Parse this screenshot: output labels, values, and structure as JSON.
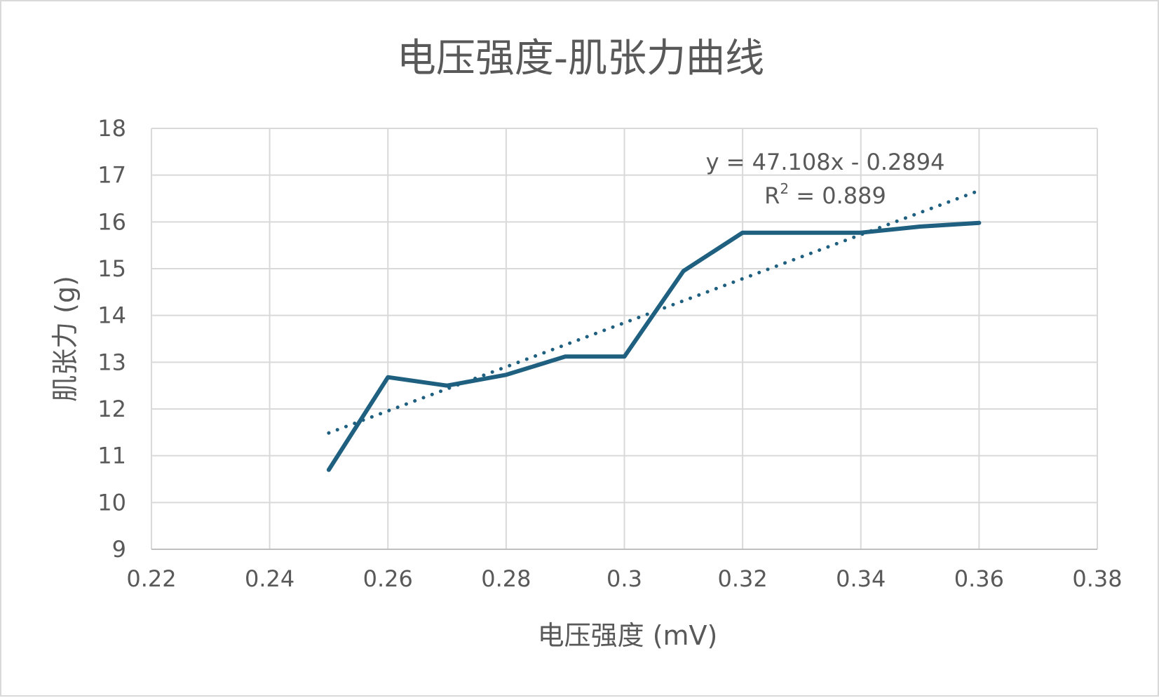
{
  "chart_data": {
    "type": "line",
    "title": "电压强度-肌张力曲线",
    "xlabel": "电压强度 (mV)",
    "ylabel": "肌张力 (g)",
    "xlim": [
      0.22,
      0.38
    ],
    "ylim": [
      9,
      18
    ],
    "x_ticks": [
      "0.22",
      "0.24",
      "0.26",
      "0.28",
      "0.3",
      "0.32",
      "0.34",
      "0.36",
      "0.38"
    ],
    "y_ticks": [
      "9",
      "10",
      "11",
      "12",
      "13",
      "14",
      "15",
      "16",
      "17",
      "18"
    ],
    "x_tick_values": [
      0.22,
      0.24,
      0.26,
      0.28,
      0.3,
      0.32,
      0.34,
      0.36,
      0.38
    ],
    "y_tick_values": [
      9,
      10,
      11,
      12,
      13,
      14,
      15,
      16,
      17,
      18
    ],
    "grid": true,
    "series": [
      {
        "x": [
          0.25,
          0.26,
          0.27,
          0.28,
          0.29,
          0.3,
          0.31,
          0.32,
          0.33,
          0.34,
          0.35,
          0.36
        ],
        "y": [
          10.7,
          12.68,
          12.5,
          12.73,
          13.12,
          13.12,
          14.95,
          15.77,
          15.77,
          15.77,
          15.9,
          15.98
        ],
        "color": "#1f6080"
      }
    ],
    "trendline": {
      "type": "linear",
      "slope": 47.108,
      "intercept": -0.2894,
      "x_range": [
        0.25,
        0.36
      ],
      "style": "dotted",
      "color": "#1f6080",
      "equation_label": "y = 47.108x - 0.2894",
      "r2_label_prefix": "R",
      "r2_label_sup": "2",
      "r2_label_value": " = 0.889"
    }
  }
}
